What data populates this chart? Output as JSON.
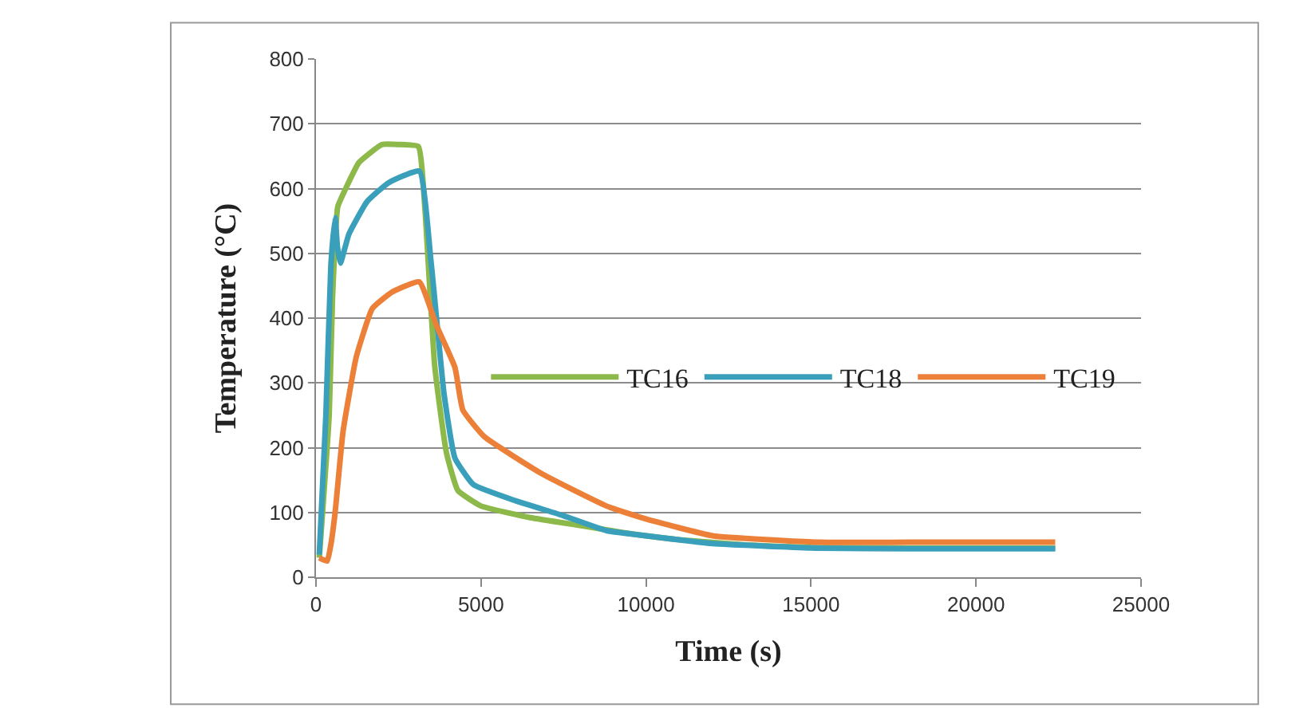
{
  "chart_data": {
    "type": "line",
    "xlabel": "Time (s)",
    "ylabel": "Temperature (°C)",
    "xlim": [
      0,
      25000
    ],
    "xticks": [
      0,
      5000,
      10000,
      15000,
      20000,
      25000
    ],
    "ylim": [
      0,
      800
    ],
    "yticks": [
      0,
      100,
      200,
      300,
      400,
      500,
      600,
      700,
      800
    ],
    "grid": "y",
    "legend": "right",
    "marker": "none",
    "line_style": "solid",
    "series": [
      {
        "name": "TC16",
        "color": "#8db84a",
        "x": [
          100,
          400,
          500,
          660,
          900,
          1300,
          2000,
          2500,
          3100,
          3300,
          3600,
          3950,
          4300,
          5000,
          6500,
          8000,
          9300,
          11000,
          13000,
          15000,
          18000,
          22400
        ],
        "values": [
          30,
          250,
          430,
          572,
          600,
          640,
          668,
          668,
          665,
          570,
          325,
          193,
          134,
          110,
          92,
          80,
          69,
          58,
          50,
          46,
          45,
          45
        ]
      },
      {
        "name": "TC18",
        "color": "#3a9fba",
        "x": [
          100,
          300,
          450,
          580,
          650,
          740,
          1000,
          1550,
          2200,
          3130,
          3480,
          3880,
          4210,
          4770,
          6050,
          7500,
          8800,
          10000,
          12020,
          15240,
          18000,
          22400
        ],
        "values": [
          35,
          250,
          480,
          555,
          510,
          485,
          530,
          580,
          609,
          627,
          490,
          283,
          184,
          143,
          118,
          95,
          72,
          64,
          52,
          45,
          44,
          44
        ]
      },
      {
        "name": "TC19",
        "color": "#ec8038",
        "x": [
          100,
          340,
          450,
          580,
          820,
          1220,
          1710,
          2300,
          3130,
          3640,
          4210,
          4450,
          5100,
          6870,
          8800,
          10000,
          12020,
          15240,
          18000,
          22400
        ],
        "values": [
          30,
          25,
          50,
          100,
          225,
          340,
          415,
          440,
          456,
          390,
          324,
          258,
          217,
          159,
          110,
          90,
          64,
          54,
          54,
          54
        ]
      }
    ]
  }
}
